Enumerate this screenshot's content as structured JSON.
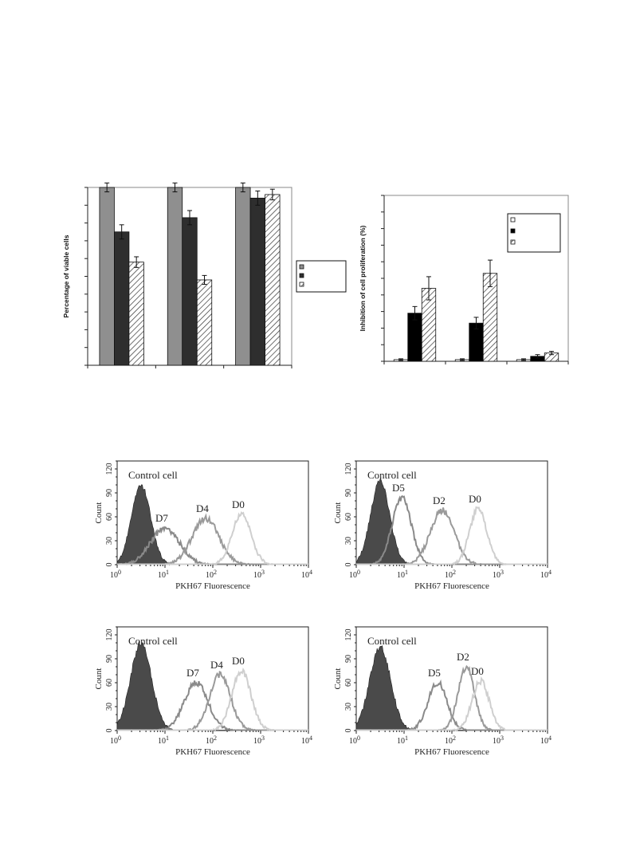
{
  "colors": {
    "gray_bar": "#8f8f8f",
    "dark_bar": "#2e2e2e",
    "hatch": "#333333",
    "control_fill": "#4a4a4a",
    "late_curve": "#8a8a8a",
    "mid_curve": "#9a9a9a",
    "d0_curve": "#cfcfcf"
  },
  "chart_data": [
    {
      "id": "viability",
      "type": "bar",
      "ylabel": "Percentage of viable cells",
      "ylim": [
        0,
        100
      ],
      "categories": [
        "",
        "",
        ""
      ],
      "legend_position": "right",
      "series": [
        {
          "style": "gray",
          "values": [
            100,
            100,
            100
          ],
          "errors": [
            2.5,
            2.5,
            2.5
          ]
        },
        {
          "style": "dark",
          "values": [
            75,
            83,
            94
          ],
          "errors": [
            4,
            4,
            4
          ]
        },
        {
          "style": "hatch",
          "values": [
            58,
            48,
            96
          ],
          "errors": [
            3,
            2.5,
            3
          ]
        }
      ]
    },
    {
      "id": "proliferation",
      "type": "bar",
      "ylabel": "Inhibition of cell proliferation (%)",
      "ylim": [
        0,
        100
      ],
      "categories": [
        "",
        "",
        ""
      ],
      "legend_position": "top-right",
      "series": [
        {
          "style": "white",
          "values": [
            1,
            1,
            1
          ],
          "errors": [
            0.5,
            0.5,
            0.5
          ]
        },
        {
          "style": "black",
          "values": [
            29,
            23,
            3
          ],
          "errors": [
            4,
            3.5,
            1
          ]
        },
        {
          "style": "hatch",
          "values": [
            44,
            53,
            5
          ],
          "errors": [
            7,
            8,
            1
          ]
        }
      ]
    },
    {
      "id": "flow_a",
      "type": "area",
      "xlabel": "PKH67 Fluorescence",
      "ylabel": "Count",
      "y_ticks": [
        "0",
        "30",
        "60",
        "90",
        "120"
      ],
      "x_ticks": [
        "10 0",
        "10 1",
        "10 2",
        "10 3",
        "10 4"
      ],
      "x_scale": "log",
      "xlim_log10": [
        0,
        4
      ],
      "ylim": [
        0,
        130
      ],
      "control_label": "Control cell",
      "curves": [
        {
          "label": "",
          "role": "control",
          "peak_log10": 0.5,
          "width": 0.2,
          "height": 100,
          "filled": true
        },
        {
          "label": "D7",
          "role": "late",
          "peak_log10": 1.0,
          "width": 0.3,
          "height": 46,
          "filled": false
        },
        {
          "label": "D4",
          "role": "mid",
          "peak_log10": 1.85,
          "width": 0.28,
          "height": 58,
          "filled": false
        },
        {
          "label": "D0",
          "role": "d0",
          "peak_log10": 2.6,
          "width": 0.2,
          "height": 63,
          "filled": false
        }
      ]
    },
    {
      "id": "flow_b",
      "type": "area",
      "xlabel": "PKH67 Fluorescence",
      "ylabel": "Count",
      "y_ticks": [
        "0",
        "30",
        "60",
        "90",
        "120"
      ],
      "x_ticks": [
        "10 0",
        "10 1",
        "10 2",
        "10 3",
        "10 4"
      ],
      "x_scale": "log",
      "xlim_log10": [
        0,
        4
      ],
      "ylim": [
        0,
        130
      ],
      "control_label": "Control cell",
      "curves": [
        {
          "label": "",
          "role": "control",
          "peak_log10": 0.5,
          "width": 0.2,
          "height": 105,
          "filled": true
        },
        {
          "label": "D5",
          "role": "late",
          "peak_log10": 0.95,
          "width": 0.2,
          "height": 84,
          "filled": false
        },
        {
          "label": "D2",
          "role": "mid",
          "peak_log10": 1.8,
          "width": 0.25,
          "height": 68,
          "filled": false
        },
        {
          "label": "D0",
          "role": "d0",
          "peak_log10": 2.55,
          "width": 0.18,
          "height": 70,
          "filled": false
        }
      ]
    },
    {
      "id": "flow_c",
      "type": "area",
      "xlabel": "PKH67 Fluorescence",
      "ylabel": "Count",
      "y_ticks": [
        "0",
        "30",
        "60",
        "90",
        "120"
      ],
      "x_ticks": [
        "10 0",
        "10 1",
        "10 2",
        "10 3",
        "10 4"
      ],
      "x_scale": "log",
      "xlim_log10": [
        0,
        4
      ],
      "ylim": [
        0,
        130
      ],
      "control_label": "Control cell",
      "curves": [
        {
          "label": "",
          "role": "control",
          "peak_log10": 0.5,
          "width": 0.22,
          "height": 110,
          "filled": true
        },
        {
          "label": "D7",
          "role": "late",
          "peak_log10": 1.65,
          "width": 0.25,
          "height": 60,
          "filled": false
        },
        {
          "label": "D4",
          "role": "mid",
          "peak_log10": 2.15,
          "width": 0.22,
          "height": 70,
          "filled": false
        },
        {
          "label": "D0",
          "role": "d0",
          "peak_log10": 2.6,
          "width": 0.2,
          "height": 75,
          "filled": false
        }
      ]
    },
    {
      "id": "flow_d",
      "type": "area",
      "xlabel": "PKH67 Fluorescence",
      "ylabel": "Count",
      "y_ticks": [
        "0",
        "30",
        "60",
        "90",
        "120"
      ],
      "x_ticks": [
        "10 0",
        "10 1",
        "10 2",
        "10 3",
        "10 4"
      ],
      "x_scale": "log",
      "xlim_log10": [
        0,
        4
      ],
      "ylim": [
        0,
        130
      ],
      "control_label": "Control cell",
      "curves": [
        {
          "label": "",
          "role": "control",
          "peak_log10": 0.5,
          "width": 0.22,
          "height": 105,
          "filled": true
        },
        {
          "label": "D5",
          "role": "late",
          "peak_log10": 1.7,
          "width": 0.2,
          "height": 60,
          "filled": false
        },
        {
          "label": "D2",
          "role": "mid",
          "peak_log10": 2.3,
          "width": 0.17,
          "height": 80,
          "filled": false
        },
        {
          "label": "D0",
          "role": "d0",
          "peak_log10": 2.6,
          "width": 0.18,
          "height": 62,
          "filled": false
        }
      ]
    }
  ]
}
